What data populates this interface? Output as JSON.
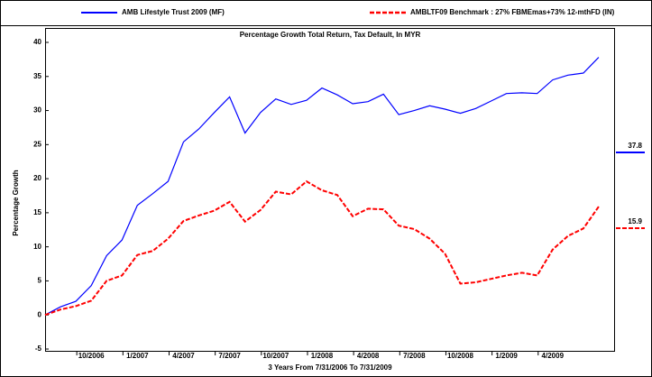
{
  "chart_data": {
    "type": "line",
    "title": "Percentage Growth Total Return, Tax Default, In MYR",
    "x_label": "3 Years From 7/31/2006 To 7/31/2009",
    "y_label": "Percentage Growth",
    "categories": [
      null,
      null,
      null,
      "10/2006",
      null,
      null,
      "1/2007",
      null,
      null,
      "4/2007",
      null,
      null,
      "7/2007",
      null,
      null,
      "10/2007",
      null,
      null,
      "1/2008",
      null,
      null,
      "4/2008",
      null,
      null,
      "7/2008",
      null,
      null,
      "10/2008",
      null,
      null,
      "1/2009",
      null,
      null,
      "4/2009",
      null,
      null,
      null
    ],
    "ylim": [
      -5,
      40
    ],
    "yticks": [
      -5,
      0,
      5,
      10,
      15,
      20,
      25,
      30,
      35,
      40
    ],
    "series": [
      {
        "name": "AMB Lifestyle Trust 2009 (MF)",
        "color": "#0000ff",
        "dash": false,
        "values": [
          0,
          1.2,
          2,
          4.3,
          8.7,
          11,
          16.1,
          17.8,
          19.6,
          25.4,
          27.3,
          29.7,
          32,
          26.7,
          29.7,
          31.7,
          30.9,
          31.5,
          33.3,
          32.3,
          31,
          31.3,
          32.4,
          29.4,
          30,
          30.7,
          30.2,
          29.6,
          30.3,
          31.4,
          32.5,
          32.6,
          32.5,
          34.5,
          35.2,
          35.5,
          37.8
        ]
      },
      {
        "name": "AMBLTF09 Benchmark : 27% FBMEmas+73% 12-mthFD (IN)",
        "color": "#ff0000",
        "dash": true,
        "values": [
          0,
          0.8,
          1.3,
          2.1,
          5,
          5.8,
          8.8,
          9.4,
          11.2,
          13.8,
          14.6,
          15.3,
          16.6,
          13.7,
          15.4,
          18.1,
          17.7,
          19.6,
          18.3,
          17.6,
          14.5,
          15.6,
          15.5,
          13.1,
          12.6,
          11.2,
          9,
          4.6,
          4.8,
          5.3,
          5.8,
          6.2,
          5.8,
          9.6,
          11.6,
          12.7,
          15.9
        ]
      }
    ]
  }
}
